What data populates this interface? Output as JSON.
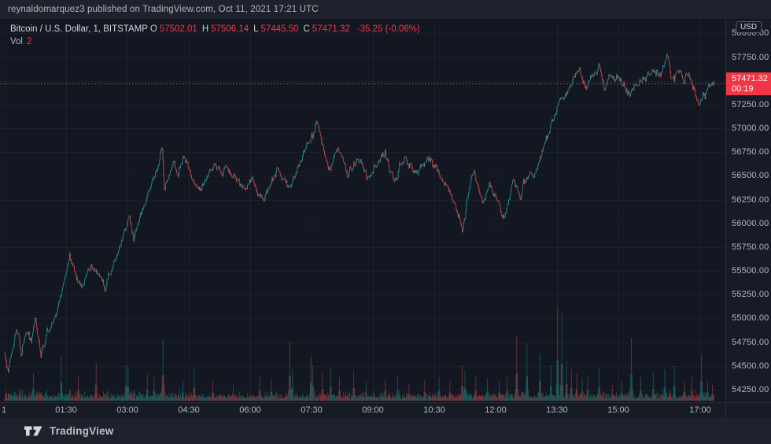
{
  "publisher_bar": {
    "text": "reynaldomarquez3 published on TradingView.com, Oct 11, 2021 17:21 UTC"
  },
  "legend": {
    "symbol": "Bitcoin / U.S. Dollar, 1, BITSTAMP",
    "ohlc": [
      {
        "label": "O",
        "value": "57502.01"
      },
      {
        "label": "H",
        "value": "57506.14"
      },
      {
        "label": "L",
        "value": "57445.50"
      },
      {
        "label": "C",
        "value": "57471.32"
      }
    ],
    "change": "-35.25 (-0.06%)",
    "volume_label": "Vol",
    "volume_value": "2"
  },
  "price_axis": {
    "currency_badge": "USD",
    "ticks": [
      "58000.00",
      "57750.00",
      "57500.00",
      "57250.00",
      "57000.00",
      "56750.00",
      "56500.00",
      "56250.00",
      "56000.00",
      "55750.00",
      "55500.00",
      "55250.00",
      "55000.00",
      "54750.00",
      "54500.00",
      "54250.00"
    ],
    "price_label": {
      "price": "57471.32",
      "countdown": "00:19"
    }
  },
  "time_axis": {
    "ticks": [
      {
        "label": "1",
        "t": 0
      },
      {
        "label": "01:30",
        "t": 90
      },
      {
        "label": "03:00",
        "t": 180
      },
      {
        "label": "04:30",
        "t": 270
      },
      {
        "label": "06:00",
        "t": 360
      },
      {
        "label": "07:30",
        "t": 450
      },
      {
        "label": "09:00",
        "t": 540
      },
      {
        "label": "10:30",
        "t": 630
      },
      {
        "label": "12:00",
        "t": 720
      },
      {
        "label": "13:30",
        "t": 810
      },
      {
        "label": "15:00",
        "t": 900
      },
      {
        "label": "17:00",
        "t": 1020
      }
    ]
  },
  "footer": {
    "brand": "TradingView"
  },
  "colors": {
    "up": "#26a69a",
    "down": "#ef5350",
    "vol_up": "rgba(38,166,154,0.55)",
    "vol_down": "rgba(239,83,80,0.55)",
    "label_bg": "#f23645",
    "grid": "rgba(125,139,170,0.08)",
    "bg": "#131722"
  },
  "chart_data": {
    "type": "candlestick",
    "title": "Bitcoin / U.S. Dollar",
    "interval_minutes": 1,
    "exchange": "BITSTAMP",
    "candles_count": 1041,
    "time_span_minutes": [
      0,
      1040
    ],
    "visible_price_range": [
      54130,
      58150
    ],
    "approx_session_low": 54280,
    "approx_session_high": 57760,
    "last": {
      "open": 57502.01,
      "high": 57506.14,
      "low": 57445.5,
      "close": 57471.32
    },
    "price_keypoints": [
      [
        0,
        54640
      ],
      [
        5,
        54430
      ],
      [
        12,
        54700
      ],
      [
        17,
        54890
      ],
      [
        24,
        54620
      ],
      [
        31,
        54860
      ],
      [
        39,
        54760
      ],
      [
        45,
        55000
      ],
      [
        53,
        54600
      ],
      [
        61,
        54830
      ],
      [
        72,
        54960
      ],
      [
        80,
        55180
      ],
      [
        88,
        55420
      ],
      [
        95,
        55660
      ],
      [
        103,
        55480
      ],
      [
        112,
        55350
      ],
      [
        120,
        55500
      ],
      [
        128,
        55570
      ],
      [
        137,
        55450
      ],
      [
        147,
        55360
      ],
      [
        156,
        55520
      ],
      [
        164,
        55650
      ],
      [
        175,
        55900
      ],
      [
        183,
        56060
      ],
      [
        189,
        55830
      ],
      [
        197,
        56050
      ],
      [
        205,
        56250
      ],
      [
        213,
        56400
      ],
      [
        222,
        56550
      ],
      [
        231,
        56800
      ],
      [
        234,
        56350
      ],
      [
        240,
        56500
      ],
      [
        247,
        56650
      ],
      [
        254,
        56480
      ],
      [
        262,
        56700
      ],
      [
        270,
        56550
      ],
      [
        279,
        56400
      ],
      [
        288,
        56350
      ],
      [
        298,
        56500
      ],
      [
        307,
        56620
      ],
      [
        316,
        56550
      ],
      [
        325,
        56600
      ],
      [
        335,
        56500
      ],
      [
        344,
        56420
      ],
      [
        353,
        56380
      ],
      [
        362,
        56450
      ],
      [
        372,
        56300
      ],
      [
        381,
        56250
      ],
      [
        390,
        56400
      ],
      [
        399,
        56550
      ],
      [
        408,
        56480
      ],
      [
        418,
        56400
      ],
      [
        427,
        56550
      ],
      [
        436,
        56700
      ],
      [
        445,
        56850
      ],
      [
        452,
        56950
      ],
      [
        457,
        57080
      ],
      [
        464,
        56880
      ],
      [
        471,
        56700
      ],
      [
        475,
        56580
      ],
      [
        482,
        56700
      ],
      [
        489,
        56820
      ],
      [
        496,
        56650
      ],
      [
        503,
        56500
      ],
      [
        510,
        56600
      ],
      [
        517,
        56700
      ],
      [
        524,
        56620
      ],
      [
        531,
        56500
      ],
      [
        538,
        56560
      ],
      [
        545,
        56620
      ],
      [
        552,
        56700
      ],
      [
        558,
        56720
      ],
      [
        565,
        56560
      ],
      [
        572,
        56400
      ],
      [
        579,
        56600
      ],
      [
        586,
        56700
      ],
      [
        593,
        56640
      ],
      [
        600,
        56500
      ],
      [
        607,
        56560
      ],
      [
        614,
        56640
      ],
      [
        621,
        56700
      ],
      [
        628,
        56600
      ],
      [
        635,
        56540
      ],
      [
        641,
        56460
      ],
      [
        648,
        56380
      ],
      [
        655,
        56300
      ],
      [
        662,
        56150
      ],
      [
        668,
        56050
      ],
      [
        671,
        55900
      ],
      [
        675,
        56050
      ],
      [
        678,
        56250
      ],
      [
        683,
        56400
      ],
      [
        688,
        56550
      ],
      [
        692,
        56450
      ],
      [
        697,
        56300
      ],
      [
        701,
        56200
      ],
      [
        706,
        56300
      ],
      [
        711,
        56420
      ],
      [
        715,
        56350
      ],
      [
        720,
        56280
      ],
      [
        725,
        56200
      ],
      [
        729,
        56100
      ],
      [
        733,
        56050
      ],
      [
        737,
        56200
      ],
      [
        742,
        56350
      ],
      [
        746,
        56450
      ],
      [
        751,
        56350
      ],
      [
        756,
        56280
      ],
      [
        760,
        56380
      ],
      [
        765,
        56480
      ],
      [
        770,
        56550
      ],
      [
        774,
        56480
      ],
      [
        779,
        56550
      ],
      [
        783,
        56650
      ],
      [
        788,
        56750
      ],
      [
        793,
        56850
      ],
      [
        797,
        56950
      ],
      [
        802,
        57050
      ],
      [
        806,
        57150
      ],
      [
        811,
        57250
      ],
      [
        816,
        57350
      ],
      [
        820,
        57300
      ],
      [
        825,
        57380
      ],
      [
        830,
        57450
      ],
      [
        834,
        57520
      ],
      [
        839,
        57580
      ],
      [
        843,
        57620
      ],
      [
        848,
        57500
      ],
      [
        853,
        57400
      ],
      [
        857,
        57480
      ],
      [
        862,
        57560
      ],
      [
        866,
        57620
      ],
      [
        871,
        57650
      ],
      [
        876,
        57550
      ],
      [
        880,
        57420
      ],
      [
        885,
        57500
      ],
      [
        889,
        57560
      ],
      [
        894,
        57500
      ],
      [
        899,
        57560
      ],
      [
        903,
        57540
      ],
      [
        908,
        57460
      ],
      [
        913,
        57380
      ],
      [
        917,
        57340
      ],
      [
        922,
        57420
      ],
      [
        926,
        57500
      ],
      [
        931,
        57460
      ],
      [
        936,
        57520
      ],
      [
        940,
        57560
      ],
      [
        945,
        57600
      ],
      [
        949,
        57640
      ],
      [
        954,
        57600
      ],
      [
        959,
        57550
      ],
      [
        963,
        57600
      ],
      [
        968,
        57680
      ],
      [
        972,
        57740
      ],
      [
        975,
        57660
      ],
      [
        978,
        57560
      ],
      [
        982,
        57500
      ],
      [
        985,
        57560
      ],
      [
        989,
        57620
      ],
      [
        992,
        57560
      ],
      [
        996,
        57500
      ],
      [
        999,
        57560
      ],
      [
        1003,
        57600
      ],
      [
        1006,
        57520
      ],
      [
        1010,
        57440
      ],
      [
        1013,
        57360
      ],
      [
        1017,
        57250
      ],
      [
        1020,
        57320
      ],
      [
        1024,
        57380
      ],
      [
        1027,
        57300
      ],
      [
        1030,
        57360
      ],
      [
        1034,
        57420
      ],
      [
        1037,
        57480
      ],
      [
        1040,
        57471.32
      ]
    ],
    "volume_spikes": [
      [
        42,
        35,
        "down"
      ],
      [
        83,
        55,
        "up"
      ],
      [
        108,
        30,
        "down"
      ],
      [
        134,
        48,
        "down"
      ],
      [
        178,
        45,
        "up"
      ],
      [
        181,
        42,
        "up"
      ],
      [
        209,
        33,
        "down"
      ],
      [
        219,
        30,
        "down"
      ],
      [
        232,
        78,
        "up"
      ],
      [
        261,
        25,
        "up"
      ],
      [
        278,
        40,
        "up"
      ],
      [
        305,
        25,
        "down"
      ],
      [
        335,
        20,
        "up"
      ],
      [
        374,
        30,
        "up"
      ],
      [
        391,
        28,
        "down"
      ],
      [
        418,
        76,
        "down"
      ],
      [
        422,
        40,
        "up"
      ],
      [
        449,
        55,
        "down"
      ],
      [
        452,
        45,
        "up"
      ],
      [
        466,
        35,
        "down"
      ],
      [
        478,
        42,
        "up"
      ],
      [
        491,
        30,
        "down"
      ],
      [
        512,
        38,
        "down"
      ],
      [
        530,
        25,
        "up"
      ],
      [
        558,
        28,
        "down"
      ],
      [
        576,
        32,
        "up"
      ],
      [
        593,
        22,
        "down"
      ],
      [
        616,
        26,
        "down"
      ],
      [
        637,
        30,
        "up"
      ],
      [
        653,
        25,
        "down"
      ],
      [
        671,
        45,
        "down"
      ],
      [
        675,
        38,
        "up"
      ],
      [
        691,
        30,
        "down"
      ],
      [
        708,
        28,
        "up"
      ],
      [
        725,
        25,
        "down"
      ],
      [
        737,
        30,
        "down"
      ],
      [
        751,
        83,
        "down"
      ],
      [
        766,
        73,
        "up"
      ],
      [
        785,
        60,
        "up"
      ],
      [
        801,
        45,
        "up"
      ],
      [
        811,
        121,
        "down"
      ],
      [
        817,
        112,
        "up"
      ],
      [
        824,
        50,
        "up"
      ],
      [
        831,
        40,
        "down"
      ],
      [
        839,
        34,
        "down"
      ],
      [
        847,
        28,
        "up"
      ],
      [
        855,
        32,
        "up"
      ],
      [
        872,
        41,
        "up"
      ],
      [
        891,
        20,
        "down"
      ],
      [
        905,
        25,
        "up"
      ],
      [
        919,
        80,
        "down"
      ],
      [
        933,
        30,
        "up"
      ],
      [
        951,
        35,
        "up"
      ],
      [
        968,
        40,
        "up"
      ],
      [
        982,
        44,
        "up"
      ],
      [
        997,
        25,
        "down"
      ],
      [
        1008,
        30,
        "down"
      ],
      [
        1022,
        59,
        "up"
      ],
      [
        1031,
        25,
        "up"
      ],
      [
        1038,
        20,
        "down"
      ]
    ]
  }
}
